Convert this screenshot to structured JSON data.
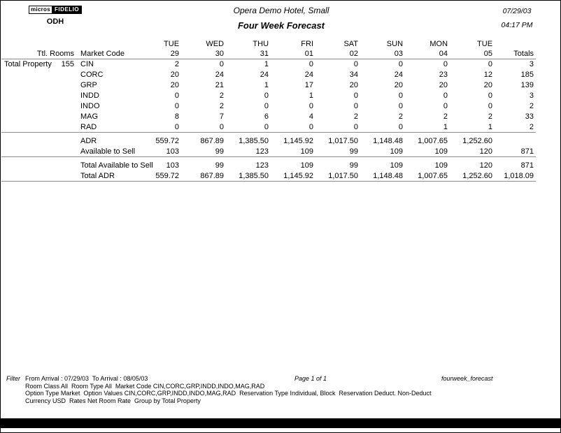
{
  "header": {
    "logo_micros": "micros",
    "logo_fidelio": "FIDELIO",
    "property_code": "ODH",
    "title": "Opera Demo Hotel, Small",
    "subtitle": "Four Week Forecast",
    "date": "07/29/03",
    "time": "04:17 PM"
  },
  "table": {
    "col_headers": {
      "ttl_rooms": "Ttl. Rooms",
      "market_code": "Market Code",
      "totals": "Totals"
    },
    "day_headers": [
      {
        "day": "TUE",
        "date": "29"
      },
      {
        "day": "WED",
        "date": "30"
      },
      {
        "day": "THU",
        "date": "31"
      },
      {
        "day": "FRI",
        "date": "01"
      },
      {
        "day": "SAT",
        "date": "02"
      },
      {
        "day": "SUN",
        "date": "03"
      },
      {
        "day": "MON",
        "date": "04"
      },
      {
        "day": "TUE",
        "date": "05"
      }
    ],
    "group_label": "Total Property",
    "ttl_rooms_value": "155",
    "market_rows": [
      {
        "code": "CIN",
        "values": [
          "2",
          "0",
          "1",
          "0",
          "0",
          "0",
          "0",
          "0"
        ],
        "total": "3"
      },
      {
        "code": "CORC",
        "values": [
          "20",
          "24",
          "24",
          "24",
          "34",
          "24",
          "23",
          "12"
        ],
        "total": "185"
      },
      {
        "code": "GRP",
        "values": [
          "20",
          "21",
          "1",
          "17",
          "20",
          "20",
          "20",
          "20"
        ],
        "total": "139"
      },
      {
        "code": "INDD",
        "values": [
          "0",
          "2",
          "0",
          "1",
          "0",
          "0",
          "0",
          "0"
        ],
        "total": "3"
      },
      {
        "code": "INDO",
        "values": [
          "0",
          "2",
          "0",
          "0",
          "0",
          "0",
          "0",
          "0"
        ],
        "total": "2"
      },
      {
        "code": "MAG",
        "values": [
          "8",
          "7",
          "6",
          "4",
          "2",
          "2",
          "2",
          "2"
        ],
        "total": "33"
      },
      {
        "code": "RAD",
        "values": [
          "0",
          "0",
          "0",
          "0",
          "0",
          "0",
          "1",
          "1"
        ],
        "total": "2"
      }
    ],
    "summary_rows": [
      {
        "label": "ADR",
        "values": [
          "559.72",
          "867.89",
          "1,385.50",
          "1,145.92",
          "1,017.50",
          "1,148.48",
          "1,007.65",
          "1,252.60"
        ],
        "total": ""
      },
      {
        "label": "Available to Sell",
        "values": [
          "103",
          "99",
          "123",
          "109",
          "99",
          "109",
          "109",
          "120"
        ],
        "total": "871"
      }
    ],
    "total_rows": [
      {
        "label": "Total Available to Sell",
        "values": [
          "103",
          "99",
          "123",
          "109",
          "99",
          "109",
          "109",
          "120"
        ],
        "total": "871"
      },
      {
        "label": "Total ADR",
        "values": [
          "559.72",
          "867.89",
          "1,385.50",
          "1,145.92",
          "1,017.50",
          "1,148.48",
          "1,007.65",
          "1,252.60"
        ],
        "total": "1,018.09"
      }
    ]
  },
  "footer": {
    "filter_label": "Filter",
    "lines": [
      "From Arrival : 07/29/03  To Arrival : 08/05/03",
      "Room Class All  Room Type All  Market Code CIN,CORC,GRP,INDD,INDO,MAG,RAD",
      "Option Type Market  Option Values CIN,CORC,GRP,INDD,INDO,MAG,RAD  Reservation Type Individual, Block  Reservation Deduct. Non-Deduct",
      "Currency USD  Rates Net Room Rate  Group by Total Property"
    ],
    "page": "Page 1 of 1",
    "report_name": "fourweek_forecast"
  }
}
